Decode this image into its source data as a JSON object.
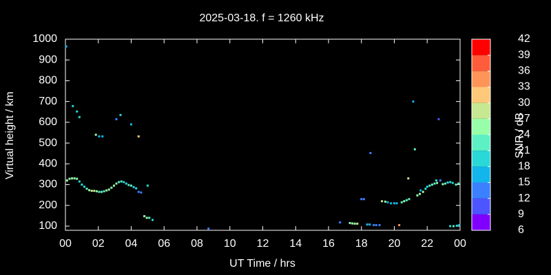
{
  "chart_data": {
    "type": "scatter",
    "title": "2025-03-18. f = 1260 kHz",
    "xlabel": "UT Time / hrs",
    "ylabel": "Virtual height / km",
    "xlim": [
      0,
      24
    ],
    "xticks": [
      {
        "value": 0,
        "label": "00"
      },
      {
        "value": 2,
        "label": "02"
      },
      {
        "value": 4,
        "label": "04"
      },
      {
        "value": 6,
        "label": "06"
      },
      {
        "value": 8,
        "label": "08"
      },
      10,
      12,
      14,
      16,
      18,
      20,
      22,
      {
        "value": 24,
        "label": "00"
      }
    ],
    "ylim": [
      80,
      1000
    ],
    "yticks": [
      100,
      200,
      300,
      400,
      500,
      600,
      700,
      800,
      900,
      1000
    ],
    "colorbar": {
      "label": "SNR / dB",
      "lim": [
        6,
        42
      ],
      "ticks": [
        6,
        9,
        12,
        15,
        18,
        21,
        24,
        27,
        30,
        33,
        36,
        39,
        42
      ],
      "colors": [
        "#7f00ff",
        "#4c55ff",
        "#3a80ff",
        "#12b6ea",
        "#2ad8d8",
        "#5cf0c4",
        "#96ffa8",
        "#c6e890",
        "#ffc878",
        "#ff9458",
        "#ff5c3c",
        "#ff0000"
      ]
    },
    "x": [
      0.05,
      0.1,
      0.25,
      0.4,
      0.55,
      0.7,
      0.85,
      1.0,
      1.15,
      1.3,
      1.45,
      1.6,
      1.75,
      1.9,
      2.05,
      2.2,
      2.35,
      2.5,
      2.65,
      2.8,
      2.95,
      3.1,
      3.25,
      3.4,
      3.55,
      3.7,
      3.85,
      4.0,
      4.15,
      4.3,
      4.45,
      4.6,
      4.8,
      4.95,
      5.1,
      5.3,
      5.0,
      0.45,
      0.7,
      0.85,
      1.85,
      2.05,
      2.25,
      3.1,
      3.35,
      4.0,
      4.45,
      8.7,
      16.7,
      17.3,
      17.45,
      17.6,
      17.75,
      18.0,
      18.15,
      18.35,
      18.5,
      18.55,
      18.75,
      18.9,
      19.1,
      19.25,
      19.45,
      19.6,
      19.8,
      20.0,
      20.15,
      20.3,
      20.45,
      20.6,
      20.75,
      20.9,
      20.85,
      21.15,
      21.25,
      21.4,
      21.55,
      21.6,
      21.75,
      21.9,
      22.0,
      22.15,
      22.3,
      22.45,
      22.6,
      22.55,
      22.7,
      22.8,
      22.95,
      23.1,
      23.25,
      23.4,
      23.55,
      23.75,
      23.9,
      23.4,
      23.6,
      23.8,
      23.95
    ],
    "y": [
      965,
      320,
      328,
      330,
      330,
      328,
      315,
      300,
      290,
      280,
      273,
      270,
      270,
      268,
      265,
      265,
      268,
      272,
      276,
      285,
      295,
      305,
      312,
      315,
      312,
      305,
      298,
      295,
      288,
      282,
      265,
      262,
      148,
      140,
      140,
      130,
      295,
      678,
      652,
      625,
      540,
      532,
      532,
      615,
      635,
      590,
      532,
      88,
      118,
      115,
      113,
      112,
      112,
      230,
      230,
      108,
      108,
      452,
      105,
      105,
      105,
      220,
      218,
      215,
      210,
      210,
      210,
      105,
      215,
      220,
      225,
      230,
      330,
      700,
      470,
      248,
      255,
      272,
      265,
      280,
      290,
      295,
      300,
      305,
      308,
      320,
      615,
      320,
      302,
      305,
      310,
      312,
      308,
      300,
      305,
      100,
      100,
      102,
      105
    ],
    "snr": [
      15,
      24,
      24,
      24,
      24,
      24,
      18,
      18,
      18,
      21,
      24,
      27,
      27,
      24,
      21,
      21,
      21,
      24,
      24,
      24,
      24,
      24,
      21,
      21,
      18,
      18,
      21,
      21,
      18,
      18,
      12,
      12,
      24,
      24,
      21,
      18,
      18,
      18,
      18,
      18,
      24,
      15,
      15,
      12,
      18,
      15,
      30,
      12,
      12,
      24,
      24,
      24,
      27,
      12,
      12,
      15,
      15,
      12,
      12,
      12,
      12,
      27,
      24,
      15,
      15,
      15,
      15,
      33,
      21,
      24,
      21,
      21,
      27,
      15,
      21,
      24,
      24,
      15,
      24,
      18,
      18,
      21,
      21,
      21,
      24,
      18,
      9,
      12,
      24,
      21,
      18,
      18,
      18,
      21,
      21,
      18,
      21,
      18,
      18
    ]
  }
}
